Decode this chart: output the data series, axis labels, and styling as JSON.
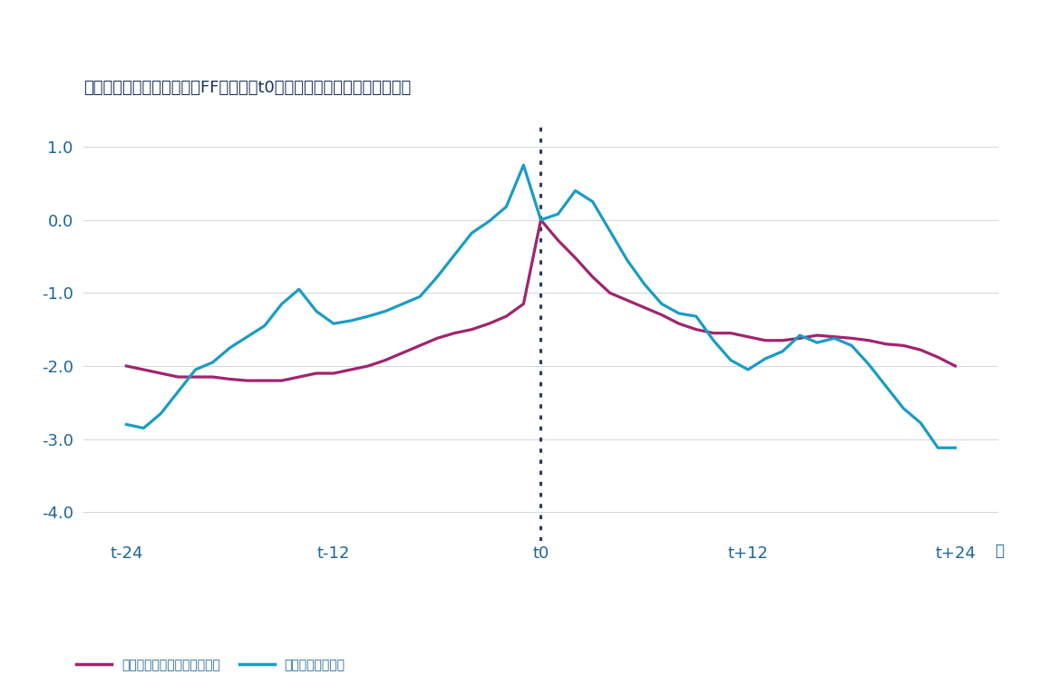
{
  "title": "実効フェデラルファンド（FF）金利（t0との差、パーセントポイント）",
  "xlabel_right": "月",
  "xtick_labels": [
    "t-24",
    "t-12",
    "t0",
    "t+12",
    "t+24"
  ],
  "xtick_positions": [
    -24,
    -12,
    0,
    12,
    24
  ],
  "ylim": [
    -4.4,
    1.3
  ],
  "yticks": [
    1.0,
    0.0,
    -1.0,
    -2.0,
    -3.0,
    -4.0
  ],
  "legend_soft": "ソフトランディング（平均）",
  "legend_recession": "景気後退（平均）",
  "color_soft": "#A0246E",
  "color_recession": "#1B9CC4",
  "dotted_line_color": "#2E3A5A",
  "axis_color": "#1B6699",
  "title_color": "#1B2E5A",
  "background_color": "#FFFFFF",
  "top_bar_color": "#1B2E5A",
  "bottom_bar_color": "#1B2E5A",
  "soft_x": [
    -24,
    -23,
    -22,
    -21,
    -20,
    -19,
    -18,
    -17,
    -16,
    -15,
    -14,
    -13,
    -12,
    -11,
    -10,
    -9,
    -8,
    -7,
    -6,
    -5,
    -4,
    -3,
    -2,
    -1,
    0,
    1,
    2,
    3,
    4,
    5,
    6,
    7,
    8,
    9,
    10,
    11,
    12,
    13,
    14,
    15,
    16,
    17,
    18,
    19,
    20,
    21,
    22,
    23,
    24
  ],
  "soft_y": [
    -2.0,
    -2.05,
    -2.1,
    -2.15,
    -2.15,
    -2.15,
    -2.18,
    -2.2,
    -2.2,
    -2.2,
    -2.15,
    -2.1,
    -2.1,
    -2.05,
    -2.0,
    -1.92,
    -1.82,
    -1.72,
    -1.62,
    -1.55,
    -1.5,
    -1.42,
    -1.32,
    -1.15,
    0.0,
    -0.28,
    -0.52,
    -0.78,
    -1.0,
    -1.1,
    -1.2,
    -1.3,
    -1.42,
    -1.5,
    -1.55,
    -1.55,
    -1.6,
    -1.65,
    -1.65,
    -1.62,
    -1.58,
    -1.6,
    -1.62,
    -1.65,
    -1.7,
    -1.72,
    -1.78,
    -1.88,
    -2.0
  ],
  "recession_x": [
    -24,
    -23,
    -22,
    -21,
    -20,
    -19,
    -18,
    -17,
    -16,
    -15,
    -14,
    -13,
    -12,
    -11,
    -10,
    -9,
    -8,
    -7,
    -6,
    -5,
    -4,
    -3,
    -2,
    -1,
    0,
    1,
    2,
    3,
    4,
    5,
    6,
    7,
    8,
    9,
    10,
    11,
    12,
    13,
    14,
    15,
    16,
    17,
    18,
    19,
    20,
    21,
    22,
    23,
    24
  ],
  "recession_y": [
    -2.8,
    -2.85,
    -2.65,
    -2.35,
    -2.05,
    -1.95,
    -1.75,
    -1.6,
    -1.45,
    -1.15,
    -0.95,
    -1.25,
    -1.42,
    -1.38,
    -1.32,
    -1.25,
    -1.15,
    -1.05,
    -0.78,
    -0.48,
    -0.18,
    -0.02,
    0.18,
    0.75,
    0.0,
    0.08,
    0.4,
    0.25,
    -0.15,
    -0.55,
    -0.88,
    -1.15,
    -1.28,
    -1.32,
    -1.65,
    -1.92,
    -2.05,
    -1.9,
    -1.8,
    -1.58,
    -1.68,
    -1.62,
    -1.72,
    -1.98,
    -2.28,
    -2.58,
    -2.78,
    -3.12,
    -3.12
  ]
}
